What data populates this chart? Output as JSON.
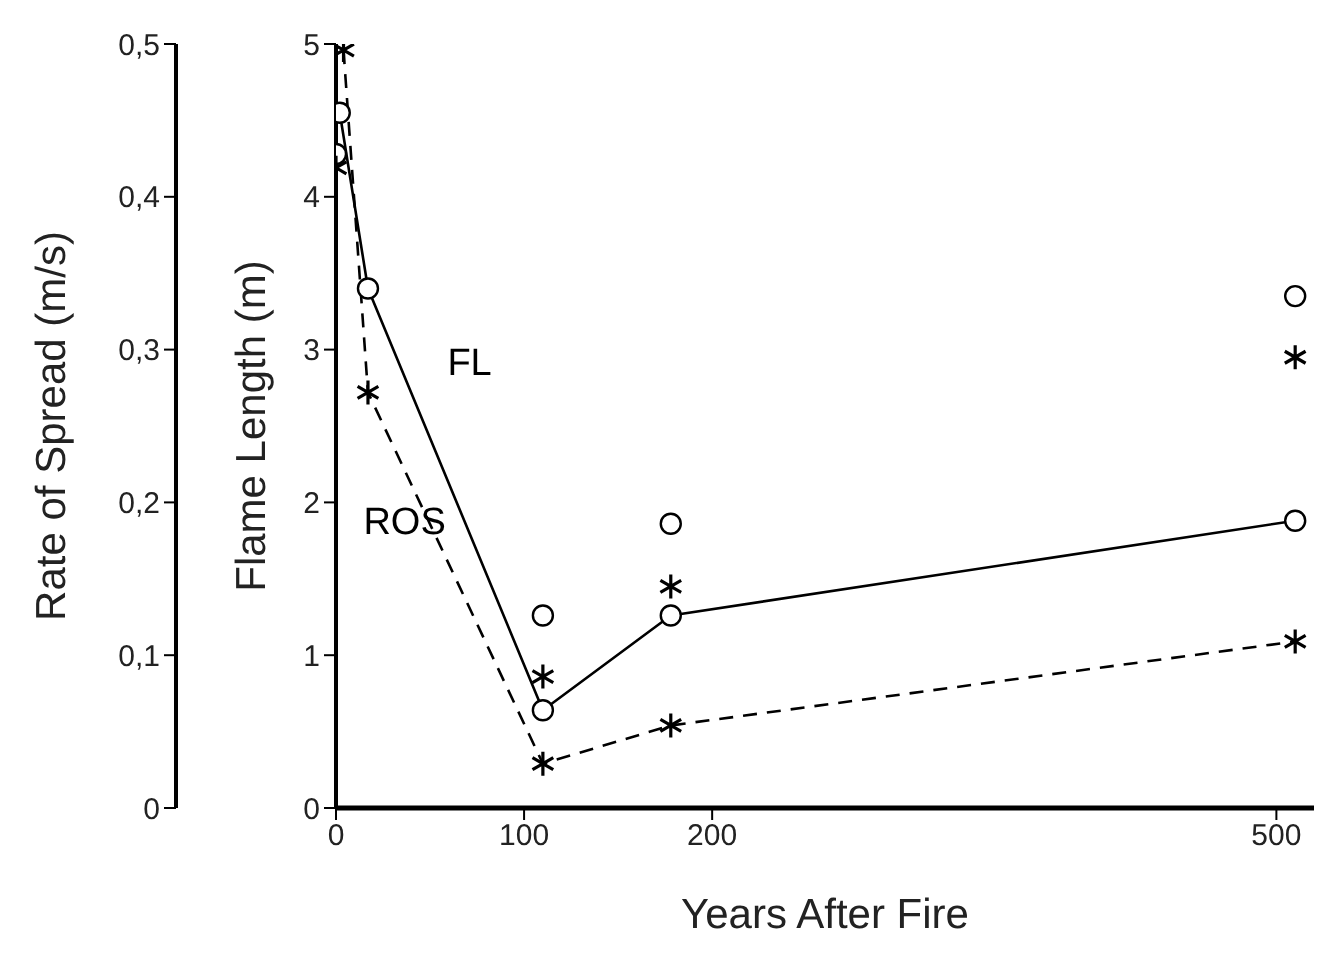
{
  "chart_data": {
    "type": "line",
    "xlabel": "Years After Fire",
    "ylabel": "Rate of Spread (m/s)",
    "y2label": "Flame Length (m)",
    "xlim": [
      0,
      520
    ],
    "xticks": [
      0,
      100,
      200,
      500
    ],
    "ylim": [
      0,
      0.5
    ],
    "yticks": [
      0,
      {
        "value": 0.1,
        "label": "0,1"
      },
      {
        "value": 0.2,
        "label": "0,2"
      },
      {
        "value": 0.3,
        "label": "0,3"
      },
      {
        "value": 0.4,
        "label": "0,4"
      },
      {
        "value": 0.5,
        "label": "0,5"
      }
    ],
    "y2lim": [
      0,
      5
    ],
    "y2ticks": [
      0,
      1,
      2,
      3,
      4,
      5
    ],
    "series": [
      {
        "name": "FL",
        "type": "line",
        "color": "#000000",
        "marker": "circle",
        "line_style": "solid",
        "axis": "y2",
        "x": [
          2,
          17,
          110,
          178,
          510
        ],
        "values": [
          4.55,
          3.4,
          0.64,
          1.26,
          1.88
        ]
      },
      {
        "name": "ROS",
        "type": "line",
        "color": "#000000",
        "marker": "cross",
        "line_style": "dashed",
        "x": [
          4,
          17,
          110,
          178,
          510
        ],
        "values": [
          0.496,
          0.272,
          0.029,
          0.054,
          0.109
        ]
      },
      {
        "type": "scatter",
        "color": "#000000",
        "marker": "circle",
        "axis": "y2",
        "x": [
          0,
          110,
          178,
          510
        ],
        "values": [
          4.28,
          1.26,
          1.86,
          3.35
        ]
      },
      {
        "type": "scatter",
        "color": "#000000",
        "marker": "cross",
        "axis": "y2",
        "x": [
          0,
          110,
          178,
          510
        ],
        "values": [
          4.19,
          0.86,
          1.45,
          2.95
        ]
      }
    ]
  }
}
